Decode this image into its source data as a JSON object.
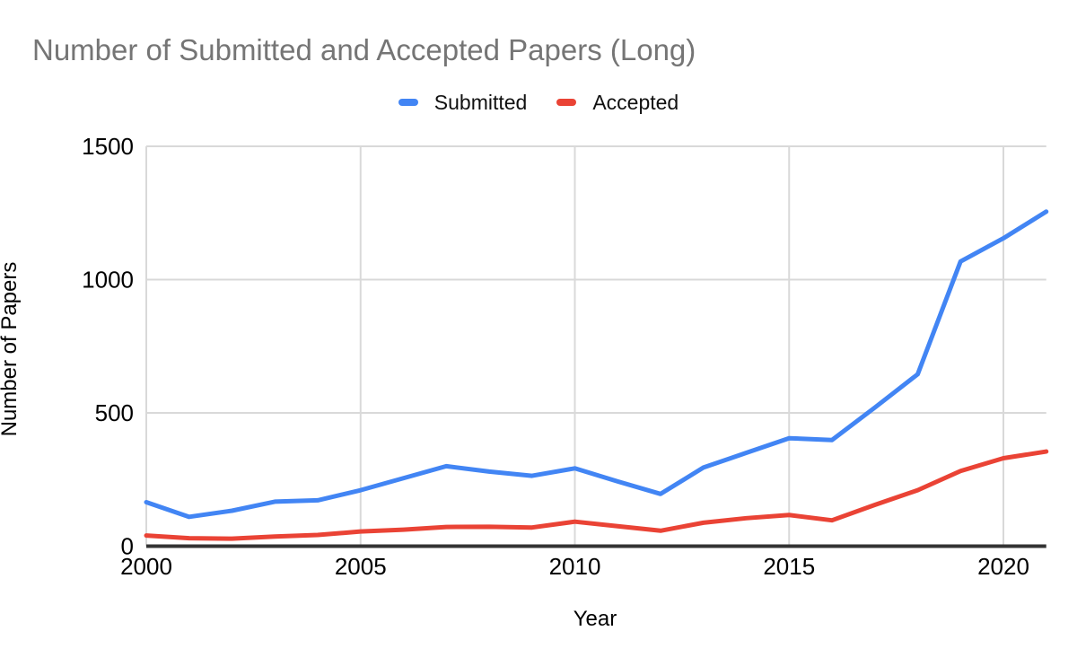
{
  "chart": {
    "title_color": "#757575",
    "grid_color": "#d9d9d9",
    "axis_line_color": "#333333",
    "tick_label_color": "#000000"
  },
  "chart_data": {
    "type": "line",
    "title": "Number of Submitted and Accepted Papers (Long)",
    "xlabel": "Year",
    "ylabel": "Number of Papers",
    "x": [
      2000,
      2001,
      2002,
      2003,
      2004,
      2005,
      2006,
      2007,
      2008,
      2009,
      2010,
      2011,
      2012,
      2013,
      2014,
      2015,
      2016,
      2017,
      2018,
      2019,
      2020,
      2021
    ],
    "series": [
      {
        "name": "Submitted",
        "color": "#4285F4",
        "values": [
          165,
          110,
          133,
          167,
          172,
          210,
          255,
          300,
          280,
          264,
          292,
          243,
          196,
          295,
          350,
          405,
          398,
          520,
          645,
          1068,
          1155,
          1255
        ]
      },
      {
        "name": "Accepted",
        "color": "#EA4335",
        "values": [
          40,
          30,
          28,
          36,
          42,
          55,
          62,
          72,
          73,
          70,
          92,
          75,
          58,
          88,
          105,
          117,
          97,
          155,
          210,
          282,
          330,
          355
        ]
      }
    ],
    "xlim": [
      2000,
      2021
    ],
    "ylim": [
      0,
      1500
    ],
    "x_ticks": [
      2000,
      2005,
      2010,
      2015,
      2020
    ],
    "y_ticks": [
      0,
      500,
      1000,
      1500
    ],
    "grid": true,
    "legend_position": "top-center"
  }
}
